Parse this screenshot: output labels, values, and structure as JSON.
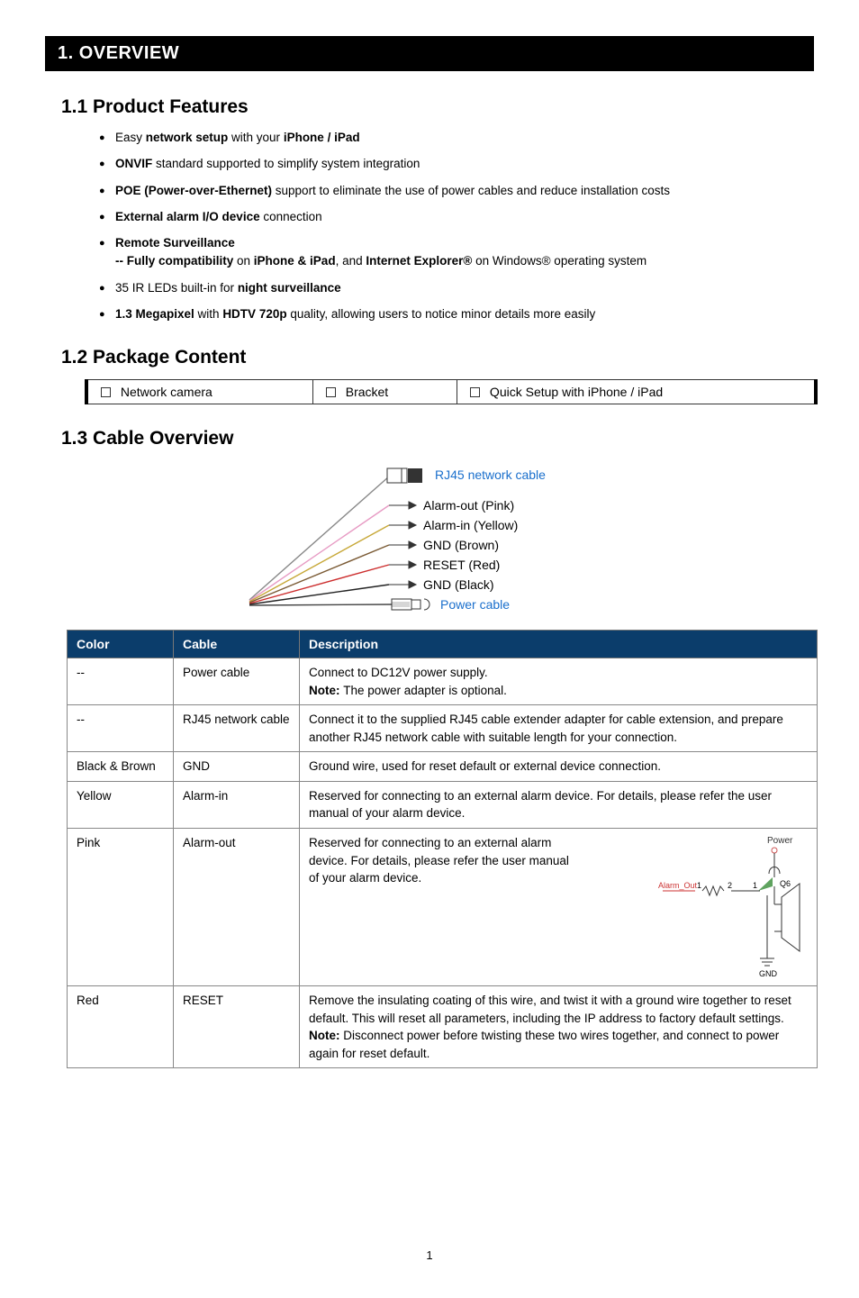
{
  "title": "1. OVERVIEW",
  "sec1": {
    "heading": "1.1 Product Features",
    "items": [
      {
        "parts": [
          "Easy ",
          "network setup",
          " with your ",
          "iPhone / iPad"
        ],
        "bold": [
          1,
          3
        ]
      },
      {
        "parts": [
          "ONVIF",
          " standard supported to simplify system integration"
        ],
        "bold": [
          0
        ]
      },
      {
        "parts": [
          "POE (Power-over-Ethernet)",
          " support to eliminate the use of power cables and reduce installation costs"
        ],
        "bold": [
          0
        ]
      },
      {
        "parts": [
          "External alarm I/O device",
          " connection"
        ],
        "bold": [
          0
        ]
      },
      {
        "parts": [
          "Remote Surveillance"
        ],
        "bold": [
          0
        ],
        "sub": {
          "parts": [
            "-- Fully compatibility",
            " on ",
            "iPhone & iPad",
            ", and ",
            "Internet Explorer®",
            " on Windows® operating system"
          ],
          "bold": [
            0,
            2,
            4
          ]
        }
      },
      {
        "parts": [
          "35 IR LEDs built-in for ",
          "night surveillance"
        ],
        "bold": [
          1
        ]
      },
      {
        "parts": [
          "1.3 Megapixel",
          " with ",
          "HDTV 720p",
          " quality, allowing users to notice minor details more easily"
        ],
        "bold": [
          0,
          2
        ]
      }
    ]
  },
  "sec2": {
    "heading": "1.2 Package Content",
    "items": [
      "Network camera",
      "Bracket",
      "Quick Setup with iPhone / iPad"
    ]
  },
  "sec3": {
    "heading": "1.3 Cable Overview",
    "diagram_labels": {
      "rj45": "RJ45 network cable",
      "alarm_out": "Alarm-out (Pink)",
      "alarm_in": "Alarm-in (Yellow)",
      "gnd1": "GND (Brown)",
      "reset": "RESET (Red)",
      "gnd2": "GND (Black)",
      "power": "Power cable"
    },
    "table": {
      "headers": [
        "Color",
        "Cable",
        "Description"
      ],
      "rows": [
        {
          "color": "--",
          "cable": "Power cable",
          "desc": "Connect to DC12V power supply.",
          "note": "The power adapter is optional."
        },
        {
          "color": "--",
          "cable": "RJ45 network cable",
          "desc": "Connect it to the supplied RJ45 cable extender adapter for cable extension, and prepare another RJ45 network cable with suitable length for your connection."
        },
        {
          "color": "Black & Brown",
          "cable": "GND",
          "desc": "Ground wire, used for reset default or external device connection."
        },
        {
          "color": "Yellow",
          "cable": "Alarm-in",
          "desc": "Reserved for connecting to an external alarm device. For details, please refer the user manual of your alarm device."
        },
        {
          "color": "Pink",
          "cable": "Alarm-out",
          "desc": "Reserved for connecting to an external alarm device. For details, please refer the user manual of your alarm device.",
          "has_diagram": true,
          "diagram": {
            "power": "Power",
            "alarm_out": "Alarm_Out",
            "n1": "1",
            "n2": "2",
            "q6": "Q6",
            "gnd": "GND"
          }
        },
        {
          "color": "Red",
          "cable": "RESET",
          "desc": "Remove the insulating coating of this wire, and twist it with a ground wire together to reset default. This will reset all parameters, including the IP address to factory default settings.",
          "note": "Disconnect power before twisting these two wires together, and connect to power again for reset default."
        }
      ]
    }
  },
  "page_number": "1",
  "colors": {
    "header_bg": "#0b3d6b",
    "link_blue": "#1a6fcc",
    "border": "#888888"
  }
}
